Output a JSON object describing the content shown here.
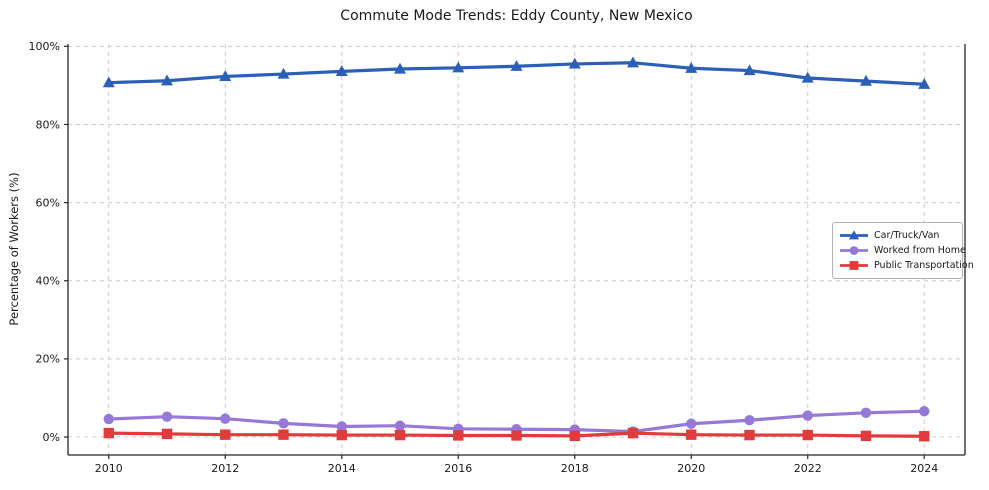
{
  "figure": {
    "title": "Commute Mode Trends: Eddy County, New Mexico",
    "ylabel": "Percentage of Workers (%)"
  },
  "chart_data": {
    "type": "line",
    "title": "Commute Mode Trends: Eddy County, New Mexico",
    "xlabel": "",
    "ylabel": "Percentage of Workers (%)",
    "x": [
      2010,
      2011,
      2012,
      2013,
      2014,
      2015,
      2016,
      2017,
      2018,
      2019,
      2020,
      2021,
      2022,
      2023,
      2024
    ],
    "series": [
      {
        "name": "Car/Truck/Van",
        "color": "#2b5fb8",
        "marker": "triangle",
        "values": [
          90.7,
          91.2,
          92.3,
          92.9,
          93.6,
          94.2,
          94.5,
          94.9,
          95.5,
          95.8,
          94.4,
          93.8,
          91.9,
          91.1,
          90.3
        ]
      },
      {
        "name": "Worked from Home",
        "color": "#9678d8",
        "marker": "circle",
        "values": [
          4.6,
          5.2,
          4.7,
          3.5,
          2.7,
          2.9,
          2.1,
          2.0,
          1.9,
          1.4,
          3.4,
          4.3,
          5.5,
          6.2,
          6.6
        ]
      },
      {
        "name": "Public Transportation",
        "color": "#e13c3c",
        "marker": "square",
        "values": [
          1.0,
          0.8,
          0.6,
          0.6,
          0.5,
          0.5,
          0.4,
          0.4,
          0.3,
          1.0,
          0.6,
          0.5,
          0.5,
          0.3,
          0.2
        ]
      }
    ],
    "xticks": [
      2010,
      2012,
      2014,
      2016,
      2018,
      2020,
      2022,
      2024
    ],
    "xtick_labels": [
      "2010",
      "2012",
      "2014",
      "2016",
      "2018",
      "2020",
      "2022",
      "2024"
    ],
    "yticks": [
      0,
      20,
      40,
      60,
      80,
      100
    ],
    "ytick_labels": [
      "0%",
      "20%",
      "40%",
      "60%",
      "80%",
      "100%"
    ],
    "xlim": [
      2009.3,
      2024.7
    ],
    "ylim": [
      -4.6,
      100.6
    ],
    "grid": true,
    "legend_position": "center right"
  },
  "colors": {
    "grid": "#cccccc",
    "spine": "#262626",
    "tick_text": "#1a1a1a",
    "background": "#ffffff",
    "legend_border": "#b3b3b3"
  }
}
